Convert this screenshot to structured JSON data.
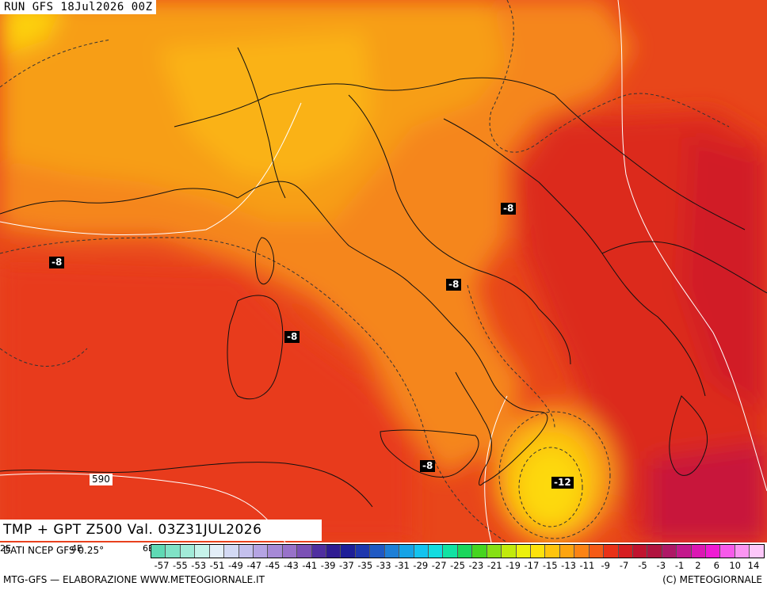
{
  "header": {
    "run": "RUN GFS 18Jul2026 00Z",
    "validity": "TMP + GPT Z500 Val. 03Z31JUL2026"
  },
  "map_labels": {
    "temp_isolines": [
      "-8",
      "-8",
      "-8",
      "-8",
      "-8",
      "-12"
    ],
    "gpt_isoline": "590"
  },
  "source": {
    "text": "DATI NCEP GFS 0.25°",
    "axis_labels": [
      "2E",
      "4E",
      "6E"
    ]
  },
  "legend": {
    "ticks": [
      "-57",
      "-55",
      "-53",
      "-51",
      "-49",
      "-47",
      "-45",
      "-43",
      "-41",
      "-39",
      "-37",
      "-35",
      "-33",
      "-31",
      "-29",
      "-27",
      "-25",
      "-23",
      "-21",
      "-19",
      "-17",
      "-15",
      "-13",
      "-11",
      "-9",
      "-7",
      "-5",
      "-3",
      "-1",
      "2",
      "6",
      "10",
      "14"
    ],
    "colors": [
      "#5fd9b4",
      "#80e2c6",
      "#a2ebd8",
      "#c6f3ea",
      "#e3eef8",
      "#d3d9f4",
      "#c4c0ed",
      "#b5a4e3",
      "#a689d6",
      "#9872c9",
      "#7b50b5",
      "#4f2fa0",
      "#2f1c92",
      "#1d1f98",
      "#1d37ad",
      "#1f59c3",
      "#1d7fd6",
      "#16a3e6",
      "#14c3ef",
      "#13dce0",
      "#12e2a3",
      "#1ad65c",
      "#46d520",
      "#86e015",
      "#c1ea0c",
      "#ecf00c",
      "#fde20b",
      "#fec40d",
      "#fda40f",
      "#fb8314",
      "#f55a16",
      "#e93218",
      "#d61e21",
      "#c0142f",
      "#b1133f",
      "#ae1866",
      "#c3198c",
      "#db18b3",
      "#ef1ad3",
      "#f75aea",
      "#fb95f2",
      "#fdc7f9"
    ]
  },
  "credits": {
    "left": "MTG-GFS — ELABORAZIONE WWW.METEOGIORNALE.IT",
    "right": "(C) METEOGIORNALE"
  },
  "colors": {
    "hot": "#e8401a",
    "warm": "#f5821a",
    "mild": "#f9a817",
    "cool": "#fdc50f",
    "hottest": "#d41f26"
  }
}
